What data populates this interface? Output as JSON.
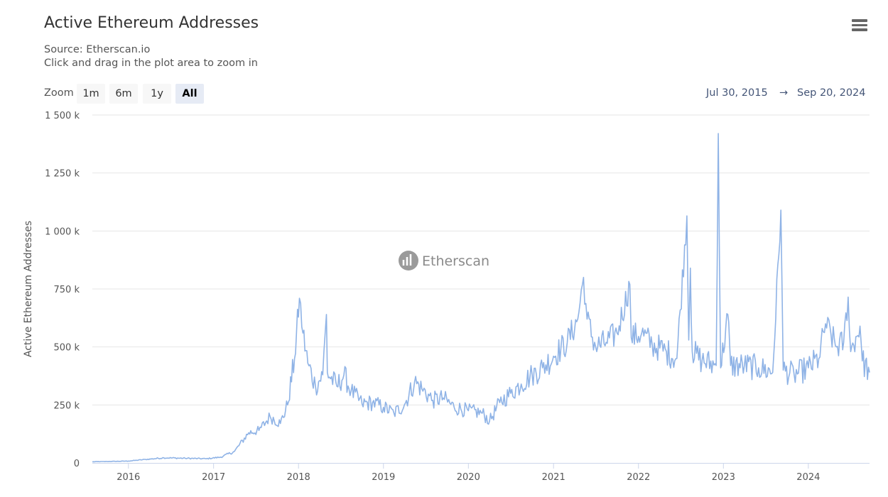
{
  "chart_data": {
    "type": "line",
    "title": "Active Ethereum Addresses",
    "subtitle_lines": [
      "Source: Etherscan.io",
      "Click and drag in the plot area to zoom in"
    ],
    "ylabel": "Active Ethereum Addresses",
    "xlabel": "",
    "ylim": [
      0,
      1500000
    ],
    "y_ticks": [
      {
        "value": 0,
        "label": "0"
      },
      {
        "value": 250000,
        "label": "250 k"
      },
      {
        "value": 500000,
        "label": "500 k"
      },
      {
        "value": 750000,
        "label": "750 k"
      },
      {
        "value": 1000000,
        "label": "1 000 k"
      },
      {
        "value": 1250000,
        "label": "1 250 k"
      },
      {
        "value": 1500000,
        "label": "1 500 k"
      }
    ],
    "x_range": [
      "2015-07-30",
      "2024-09-20"
    ],
    "x_ticks": [
      {
        "value": "2016-01-01",
        "label": "2016"
      },
      {
        "value": "2017-01-01",
        "label": "2017"
      },
      {
        "value": "2018-01-01",
        "label": "2018"
      },
      {
        "value": "2019-01-01",
        "label": "2019"
      },
      {
        "value": "2020-01-01",
        "label": "2020"
      },
      {
        "value": "2021-01-01",
        "label": "2021"
      },
      {
        "value": "2022-01-01",
        "label": "2022"
      },
      {
        "value": "2023-01-01",
        "label": "2023"
      },
      {
        "value": "2024-01-01",
        "label": "2024"
      }
    ],
    "grid": true,
    "legend": "none",
    "series": [
      {
        "color": "#8fb3e6",
        "points": [
          [
            "2015-07-30",
            5000
          ],
          [
            "2015-10-01",
            6000
          ],
          [
            "2016-01-01",
            8000
          ],
          [
            "2016-03-15",
            15000
          ],
          [
            "2016-06-01",
            22000
          ],
          [
            "2016-09-01",
            20000
          ],
          [
            "2016-12-01",
            18000
          ],
          [
            "2017-02-01",
            25000
          ],
          [
            "2017-04-01",
            50000
          ],
          [
            "2017-06-01",
            130000
          ],
          [
            "2017-07-15",
            140000
          ],
          [
            "2017-09-01",
            200000
          ],
          [
            "2017-10-15",
            170000
          ],
          [
            "2017-11-15",
            250000
          ],
          [
            "2017-12-15",
            450000
          ],
          [
            "2018-01-05",
            710000
          ],
          [
            "2018-01-20",
            560000
          ],
          [
            "2018-02-10",
            430000
          ],
          [
            "2018-03-15",
            330000
          ],
          [
            "2018-04-15",
            380000
          ],
          [
            "2018-05-01",
            640000
          ],
          [
            "2018-05-05",
            390000
          ],
          [
            "2018-06-15",
            330000
          ],
          [
            "2018-07-15",
            380000
          ],
          [
            "2018-08-15",
            310000
          ],
          [
            "2018-10-01",
            255000
          ],
          [
            "2018-11-15",
            260000
          ],
          [
            "2019-01-01",
            240000
          ],
          [
            "2019-02-15",
            215000
          ],
          [
            "2019-04-01",
            250000
          ],
          [
            "2019-05-15",
            350000
          ],
          [
            "2019-06-15",
            320000
          ],
          [
            "2019-08-01",
            270000
          ],
          [
            "2019-09-15",
            280000
          ],
          [
            "2019-11-01",
            240000
          ],
          [
            "2020-01-01",
            225000
          ],
          [
            "2020-03-01",
            215000
          ],
          [
            "2020-04-01",
            180000
          ],
          [
            "2020-05-15",
            260000
          ],
          [
            "2020-07-01",
            300000
          ],
          [
            "2020-08-15",
            340000
          ],
          [
            "2020-10-01",
            380000
          ],
          [
            "2020-11-15",
            410000
          ],
          [
            "2021-01-01",
            460000
          ],
          [
            "2021-03-01",
            520000
          ],
          [
            "2021-04-15",
            620000
          ],
          [
            "2021-05-10",
            800000
          ],
          [
            "2021-05-25",
            620000
          ],
          [
            "2021-07-01",
            500000
          ],
          [
            "2021-08-15",
            520000
          ],
          [
            "2021-10-01",
            560000
          ],
          [
            "2021-11-25",
            770000
          ],
          [
            "2021-12-01",
            540000
          ],
          [
            "2022-01-15",
            560000
          ],
          [
            "2022-03-01",
            510000
          ],
          [
            "2022-05-01",
            480000
          ],
          [
            "2022-06-15",
            450000
          ],
          [
            "2022-07-28",
            1065000
          ],
          [
            "2022-08-05",
            530000
          ],
          [
            "2022-08-12",
            840000
          ],
          [
            "2022-08-20",
            480000
          ],
          [
            "2022-10-01",
            440000
          ],
          [
            "2022-12-01",
            420000
          ],
          [
            "2022-12-10",
            1420000
          ],
          [
            "2022-12-20",
            410000
          ],
          [
            "2023-01-20",
            640000
          ],
          [
            "2023-02-01",
            420000
          ],
          [
            "2023-04-01",
            420000
          ],
          [
            "2023-06-01",
            410000
          ],
          [
            "2023-08-01",
            390000
          ],
          [
            "2023-09-05",
            1090000
          ],
          [
            "2023-09-15",
            400000
          ],
          [
            "2023-11-01",
            380000
          ],
          [
            "2024-01-01",
            410000
          ],
          [
            "2024-02-15",
            450000
          ],
          [
            "2024-03-15",
            600000
          ],
          [
            "2024-05-01",
            500000
          ],
          [
            "2024-06-01",
            520000
          ],
          [
            "2024-06-20",
            715000
          ],
          [
            "2024-07-01",
            480000
          ],
          [
            "2024-08-10",
            590000
          ],
          [
            "2024-08-20",
            440000
          ],
          [
            "2024-09-20",
            390000
          ]
        ]
      }
    ],
    "watermark": "Etherscan"
  },
  "zoom": {
    "label": "Zoom",
    "buttons": [
      {
        "label": "1m",
        "active": false
      },
      {
        "label": "6m",
        "active": false
      },
      {
        "label": "1y",
        "active": false
      },
      {
        "label": "All",
        "active": true
      }
    ]
  },
  "range": {
    "from": "Jul 30, 2015",
    "arrow": "→",
    "to": "Sep 20, 2024"
  }
}
